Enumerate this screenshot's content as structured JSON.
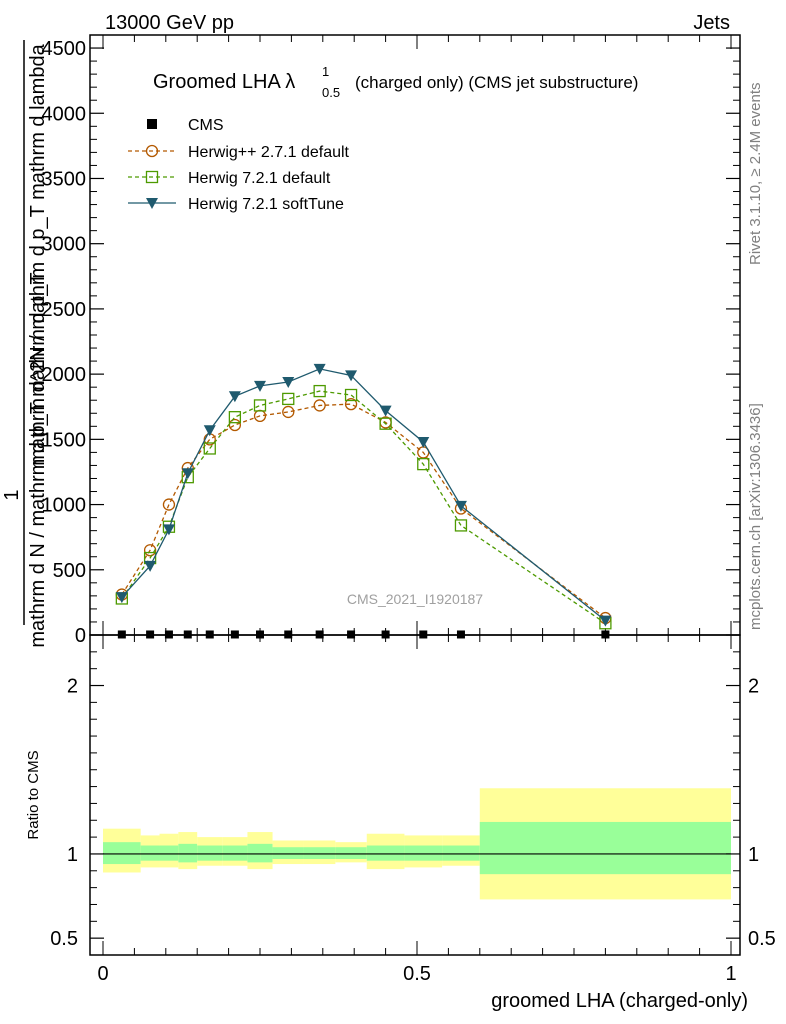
{
  "header": {
    "energy_label": "13000 GeV pp",
    "process_label": "Jets",
    "side_label_top": "Rivet 3.1.10, ≥ 2.4M events",
    "side_label_bottom": "mcplots.cern.ch [arXiv:1306.3436]",
    "analysis_label": "CMS_2021_I1920187"
  },
  "chart_data": [
    {
      "type": "line",
      "title": "Groomed LHA λ",
      "title_superscript": "1",
      "title_subscript": "0.5",
      "title_suffix": "(charged only) (CMS jet substructure)",
      "xlabel": "groomed LHA (charged-only)",
      "ylabel_numerator": "1",
      "ylabel_denominator": "mathrm d N / mathrm d p_T mathrm d p_T",
      "ylabel_overlay": "mathrm d^2N / mathrm d p_T mathrm d lambda",
      "xlim": [
        0,
        1
      ],
      "ylim": [
        0,
        4600
      ],
      "y_ticks": [
        "0",
        "500",
        "1000",
        "1500",
        "2000",
        "2500",
        "3000",
        "3500",
        "4000",
        "4500"
      ],
      "x_ticks": [
        "0",
        "0.5",
        "1"
      ],
      "legend_position": "top-left",
      "series": [
        {
          "name": "CMS",
          "color": "#000000",
          "marker": "square-filled",
          "x": [
            0.03,
            0.075,
            0.105,
            0.135,
            0.17,
            0.21,
            0.25,
            0.295,
            0.345,
            0.395,
            0.45,
            0.51,
            0.57,
            0.8
          ],
          "y": [
            4,
            4,
            4,
            4,
            4,
            4,
            4,
            4,
            4,
            4,
            4,
            4,
            4,
            4
          ]
        },
        {
          "name": "Herwig++ 2.7.1 default",
          "color": "#b35900",
          "marker": "circle-open",
          "dash": true,
          "x": [
            0.03,
            0.075,
            0.105,
            0.135,
            0.17,
            0.21,
            0.25,
            0.295,
            0.345,
            0.395,
            0.45,
            0.51,
            0.57,
            0.8
          ],
          "y": [
            310,
            650,
            1000,
            1280,
            1500,
            1610,
            1680,
            1710,
            1760,
            1770,
            1630,
            1400,
            970,
            130
          ]
        },
        {
          "name": "Herwig 7.2.1 default",
          "color": "#4d9a00",
          "marker": "square-open",
          "dash": true,
          "x": [
            0.03,
            0.075,
            0.105,
            0.135,
            0.17,
            0.21,
            0.25,
            0.295,
            0.345,
            0.395,
            0.45,
            0.51,
            0.57,
            0.8
          ],
          "y": [
            280,
            590,
            830,
            1210,
            1430,
            1670,
            1760,
            1810,
            1870,
            1840,
            1620,
            1310,
            840,
            90
          ]
        },
        {
          "name": "Herwig 7.2.1 softTune",
          "color": "#1f5a6e",
          "marker": "triangle-down-filled",
          "dash": false,
          "x": [
            0.03,
            0.075,
            0.105,
            0.135,
            0.17,
            0.21,
            0.25,
            0.295,
            0.345,
            0.395,
            0.45,
            0.51,
            0.57,
            0.8
          ],
          "y": [
            290,
            530,
            810,
            1240,
            1570,
            1830,
            1910,
            1940,
            2040,
            1990,
            1720,
            1480,
            990,
            110
          ]
        }
      ]
    },
    {
      "type": "area",
      "ylabel": "Ratio to CMS",
      "xlim": [
        0,
        1
      ],
      "ylim": [
        0.4,
        2.3
      ],
      "y_ticks": [
        "0.5",
        "1",
        "2"
      ],
      "reference_line": 1,
      "bins": [
        0,
        0.06,
        0.09,
        0.12,
        0.15,
        0.19,
        0.23,
        0.27,
        0.32,
        0.37,
        0.42,
        0.48,
        0.54,
        0.6,
        1.0
      ],
      "inner_band_color": "#99ff99",
      "outer_band_color": "#ffff99",
      "inner_band": [
        [
          0.94,
          1.07
        ],
        [
          0.96,
          1.05
        ],
        [
          0.96,
          1.05
        ],
        [
          0.95,
          1.06
        ],
        [
          0.96,
          1.05
        ],
        [
          0.96,
          1.05
        ],
        [
          0.95,
          1.06
        ],
        [
          0.97,
          1.04
        ],
        [
          0.97,
          1.04
        ],
        [
          0.97,
          1.04
        ],
        [
          0.96,
          1.05
        ],
        [
          0.96,
          1.05
        ],
        [
          0.96,
          1.05
        ],
        [
          0.88,
          1.19
        ]
      ],
      "outer_band": [
        [
          0.89,
          1.15
        ],
        [
          0.92,
          1.11
        ],
        [
          0.92,
          1.12
        ],
        [
          0.91,
          1.13
        ],
        [
          0.93,
          1.1
        ],
        [
          0.93,
          1.1
        ],
        [
          0.91,
          1.13
        ],
        [
          0.94,
          1.08
        ],
        [
          0.94,
          1.08
        ],
        [
          0.95,
          1.07
        ],
        [
          0.91,
          1.12
        ],
        [
          0.92,
          1.11
        ],
        [
          0.93,
          1.11
        ],
        [
          0.73,
          1.39
        ]
      ]
    }
  ]
}
